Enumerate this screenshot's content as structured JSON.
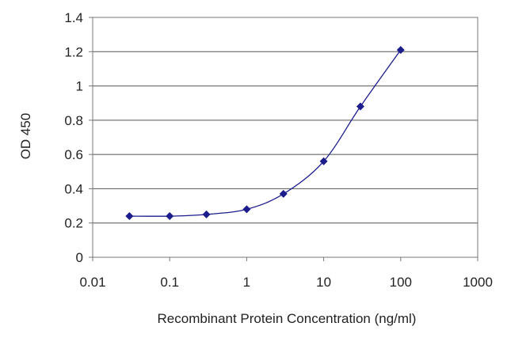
{
  "chart_data": {
    "type": "scatter",
    "title": "",
    "xlabel": "Recombinant Protein Concentration (ng/ml)",
    "ylabel": "OD 450",
    "x_scale": "log",
    "xlim": [
      0.01,
      1000
    ],
    "ylim": [
      0,
      1.4
    ],
    "x_ticks": [
      "0.01",
      "0.1",
      "1",
      "10",
      "100",
      "1000"
    ],
    "x_tick_values": [
      0.01,
      0.1,
      1,
      10,
      100,
      1000
    ],
    "y_ticks": [
      "0",
      "0.2",
      "0.4",
      "0.6",
      "0.8",
      "1",
      "1.2",
      "1.4"
    ],
    "y_tick_values": [
      0,
      0.2,
      0.4,
      0.6,
      0.8,
      1.0,
      1.2,
      1.4
    ],
    "grid": "horizontal",
    "legend": "none",
    "fitted_curve": true,
    "series": [
      {
        "x": [
          0.03,
          0.1,
          0.3,
          1,
          3,
          10,
          30,
          100
        ],
        "y": [
          0.24,
          0.24,
          0.25,
          0.28,
          0.37,
          0.56,
          0.88,
          1.21
        ]
      }
    ],
    "colors": {
      "series": "#1c1c8c",
      "grid": "#555555",
      "axis": "#777777",
      "text": "#222222"
    }
  }
}
